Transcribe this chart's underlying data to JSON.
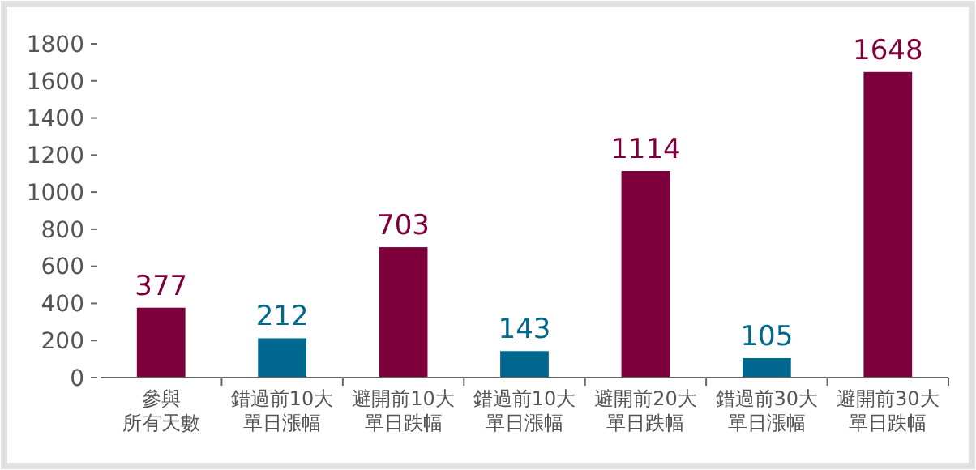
{
  "chart_data": {
    "type": "bar",
    "categories": [
      "參與所有天數",
      "錯過前10大單日漲幅",
      "避開前10大單日跌幅",
      "錯過前10大單日漲幅",
      "避開前20大單日跌幅",
      "錯過前30大單日漲幅",
      "避開前30大單日跌幅"
    ],
    "values": [
      377,
      212,
      703,
      143,
      1114,
      105,
      1648
    ],
    "colors": [
      "#7d003c",
      "#00688f",
      "#7d003c",
      "#00688f",
      "#7d003c",
      "#00688f",
      "#7d003c"
    ],
    "ylim": [
      0,
      1800
    ],
    "yticks": [
      0,
      200,
      400,
      600,
      800,
      1000,
      1200,
      1400,
      1600,
      1800
    ],
    "data_labels": true
  }
}
